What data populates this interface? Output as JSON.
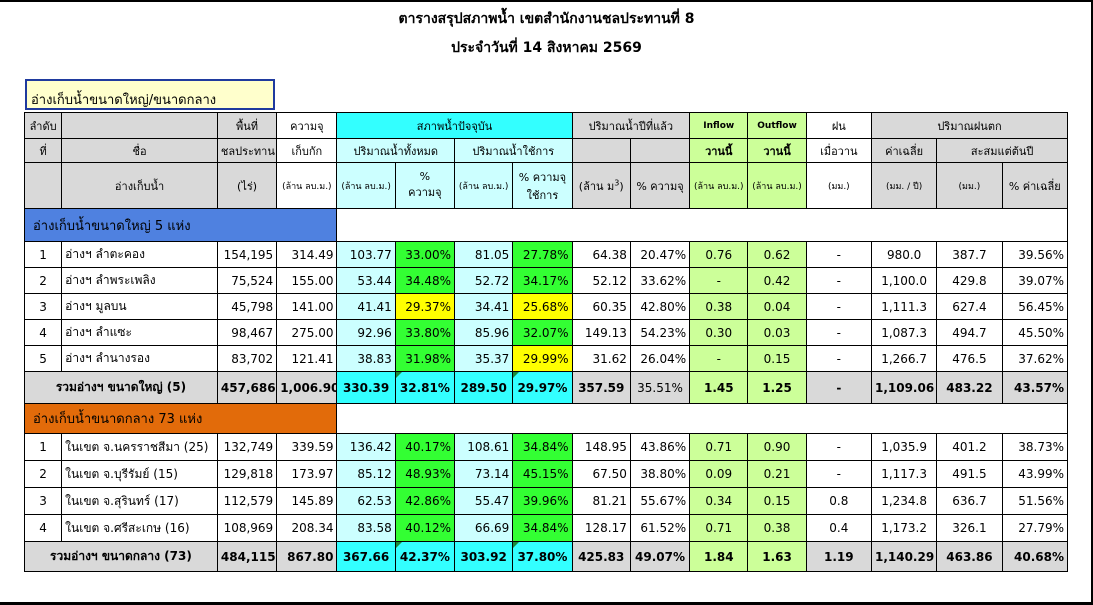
{
  "title": "ตารางสรุปสภาพน้ำ เขตสำนักงานชลประทานที่ 8",
  "date_line": "ประจำวันที่ 14 สิงหาคม 2569",
  "section_box": "อ่างเก็บน้ำขนาดใหญ่/ขนาดกลาง",
  "headers": {
    "no": [
      "ลำดับ",
      "ที่"
    ],
    "name": [
      "ชื่อ",
      "อ่างเก็บน้ำ"
    ],
    "area": [
      "พื้นที่",
      "ชลประทาน",
      "(ไร่)"
    ],
    "capacity": [
      "ความจุ",
      "เก็บกัก",
      "(ล้าน ลบ.ม.)"
    ],
    "current_status": "สภาพน้ำปัจจุบัน",
    "total_volume": "ปริมาณน้ำทั้งหมด",
    "usable_volume": "ปริมาณน้ำใช้การ",
    "mcm": "(ล้าน ลบ.ม.)",
    "pct_cap": [
      "%",
      "ความจุ"
    ],
    "pct_usable": [
      "% ความจุ",
      "ใช้การ"
    ],
    "last_year": "ปริมาณน้ำปีที่แล้ว",
    "last_year_mcm": "(ล้าน ม",
    "last_year_pct": "% ความจุ",
    "inflow": "Inflow",
    "outflow": "Outflow",
    "today": "วานนี้",
    "rain": "ฝน",
    "yesterday": "เมื่อวาน",
    "mm": "(มม.)",
    "rainfall": "ปริมาณฝนตก",
    "avg": "ค่าเฉลี่ย",
    "avg_unit": "(มม. / ปี)",
    "accum": "สะสมแต่ต้นปี",
    "pct_avg": "% ค่าเฉลี่ย"
  },
  "large": {
    "label": "อ่างเก็บน้ำขนาดใหญ่ 5 แห่ง",
    "rows": [
      [
        "1",
        "อ่างฯ ลำตะคอง",
        "154,195",
        "314.49",
        "103.77",
        "33.00%",
        "81.05",
        "27.78%",
        "64.38",
        "20.47%",
        "0.76",
        "0.62",
        "-",
        "980.0",
        "387.7",
        "39.56%"
      ],
      [
        "2",
        "อ่างฯ ลำพระเพลิง",
        "75,524",
        "155.00",
        "53.44",
        "34.48%",
        "52.72",
        "34.17%",
        "52.12",
        "33.62%",
        "-",
        "0.42",
        "-",
        "1,100.0",
        "429.8",
        "39.07%"
      ],
      [
        "3",
        "อ่างฯ มูลบน",
        "45,798",
        "141.00",
        "41.41",
        "29.37%",
        "34.41",
        "25.68%",
        "60.35",
        "42.80%",
        "0.38",
        "0.04",
        "-",
        "1,111.3",
        "627.4",
        "56.45%"
      ],
      [
        "4",
        "อ่างฯ ลำแซะ",
        "98,467",
        "275.00",
        "92.96",
        "33.80%",
        "85.96",
        "32.07%",
        "149.13",
        "54.23%",
        "0.30",
        "0.03",
        "-",
        "1,087.3",
        "494.7",
        "45.50%"
      ],
      [
        "5",
        "อ่างฯ ลำนางรอง",
        "83,702",
        "121.41",
        "38.83",
        "31.98%",
        "35.37",
        "29.99%",
        "31.62",
        "26.04%",
        "-",
        "0.15",
        "-",
        "1,266.7",
        "476.5",
        "37.62%"
      ]
    ],
    "total": [
      "รวมอ่างฯ ขนาดใหญ่ (5)",
      "457,686",
      "1,006.90",
      "330.39",
      "32.81%",
      "289.50",
      "29.97%",
      "357.59",
      "35.51%",
      "1.45",
      "1.25",
      "-",
      "1,109.06",
      "483.22",
      "43.57%"
    ]
  },
  "medium": {
    "label": "อ่างเก็บน้ำขนาดกลาง 73 แห่ง",
    "rows": [
      [
        "1",
        "ในเขต จ.นครราชสีมา (25)",
        "132,749",
        "339.59",
        "136.42",
        "40.17%",
        "108.61",
        "34.84%",
        "148.95",
        "43.86%",
        "0.71",
        "0.90",
        "-",
        "1,035.9",
        "401.2",
        "38.73%"
      ],
      [
        "2",
        "ในเขต จ.บุรีรัมย์ (15)",
        "129,818",
        "173.97",
        "85.12",
        "48.93%",
        "73.14",
        "45.15%",
        "67.50",
        "38.80%",
        "0.09",
        "0.21",
        "-",
        "1,117.3",
        "491.5",
        "43.99%"
      ],
      [
        "3",
        "ในเขต จ.สุรินทร์ (17)",
        "112,579",
        "145.89",
        "62.53",
        "42.86%",
        "55.47",
        "39.96%",
        "81.21",
        "55.67%",
        "0.34",
        "0.15",
        "0.8",
        "1,234.8",
        "636.7",
        "51.56%"
      ],
      [
        "4",
        "ในเขต จ.ศรีสะเกษ (16)",
        "108,969",
        "208.34",
        "83.58",
        "40.12%",
        "66.69",
        "34.84%",
        "128.17",
        "61.52%",
        "0.71",
        "0.38",
        "0.4",
        "1,173.2",
        "326.1",
        "27.79%"
      ]
    ],
    "total": [
      "รวมอ่างฯ ขนาดกลาง (73)",
      "484,115",
      "867.80",
      "367.66",
      "42.37%",
      "303.92",
      "37.80%",
      "425.83",
      "49.07%",
      "1.84",
      "1.63",
      "1.19",
      "1,140.29",
      "463.86",
      "40.68%"
    ]
  },
  "colors": {
    "cyan": "#33ffff",
    "light_cyan": "#ccffff",
    "green": "#33ff33",
    "light_green": "#ccff99",
    "yellow": "#ffff00",
    "gray": "#d9d9d9",
    "section_blue": "#4f81e0",
    "section_orange": "#e26b0a",
    "box_yellow": "#ffffcc"
  }
}
